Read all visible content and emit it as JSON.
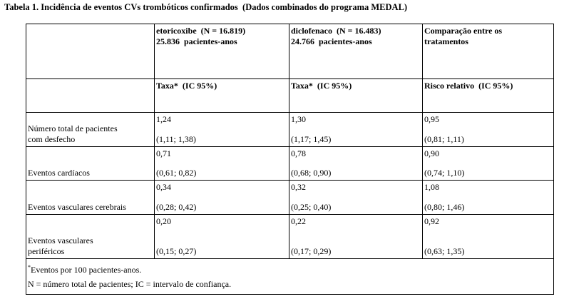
{
  "title": "Tabela 1. Incidência de eventos CVs trombóticos confirmados  (Dados combinados do programa MEDAL)",
  "table": {
    "header": [
      [
        "etoricoxibe  (N = 16.819)",
        "25.836  pacientes-anos"
      ],
      [
        "diclofenaco  (N = 16.483)",
        "24.766  pacientes-anos"
      ],
      [
        "Comparação entre os",
        "tratamentos"
      ]
    ],
    "subheader": [
      "Taxa*  (IC 95%)",
      "Taxa*  (IC 95%)",
      "Risco relativo  (IC 95%)"
    ],
    "rows": [
      {
        "label": [
          "Número total de pacientes",
          "com desfecho"
        ],
        "cells": [
          [
            "1,24",
            "(1,11; 1,38)"
          ],
          [
            "1,30",
            "(1,17; 1,45)"
          ],
          [
            "0,95",
            "(0,81; 1,11)"
          ]
        ]
      },
      {
        "label": [
          "Eventos cardíacos"
        ],
        "cells": [
          [
            "0,71",
            "(0,61; 0,82)"
          ],
          [
            "0,78",
            "(0,68; 0,90)"
          ],
          [
            "0,90",
            "(0,74; 1,10)"
          ]
        ]
      },
      {
        "label": [
          "Eventos vasculares cerebrais"
        ],
        "cells": [
          [
            "0,34",
            "(0,28; 0,42)"
          ],
          [
            "0,32",
            "(0,25; 0,40)"
          ],
          [
            "1,08",
            "(0,80; 1,46)"
          ]
        ]
      },
      {
        "label": [
          "Eventos vasculares",
          "periféricos"
        ],
        "cells": [
          [
            "0,20",
            "(0,15; 0,27)"
          ],
          [
            "0,22",
            "(0,17; 0,29)"
          ],
          [
            "0,92",
            "(0,63; 1,35)"
          ]
        ]
      }
    ],
    "footnotes": {
      "marker": "*",
      "lines": [
        "Eventos por 100 pacientes-anos.",
        "N = número total de pacientes; IC = intervalo de confiança."
      ]
    }
  }
}
